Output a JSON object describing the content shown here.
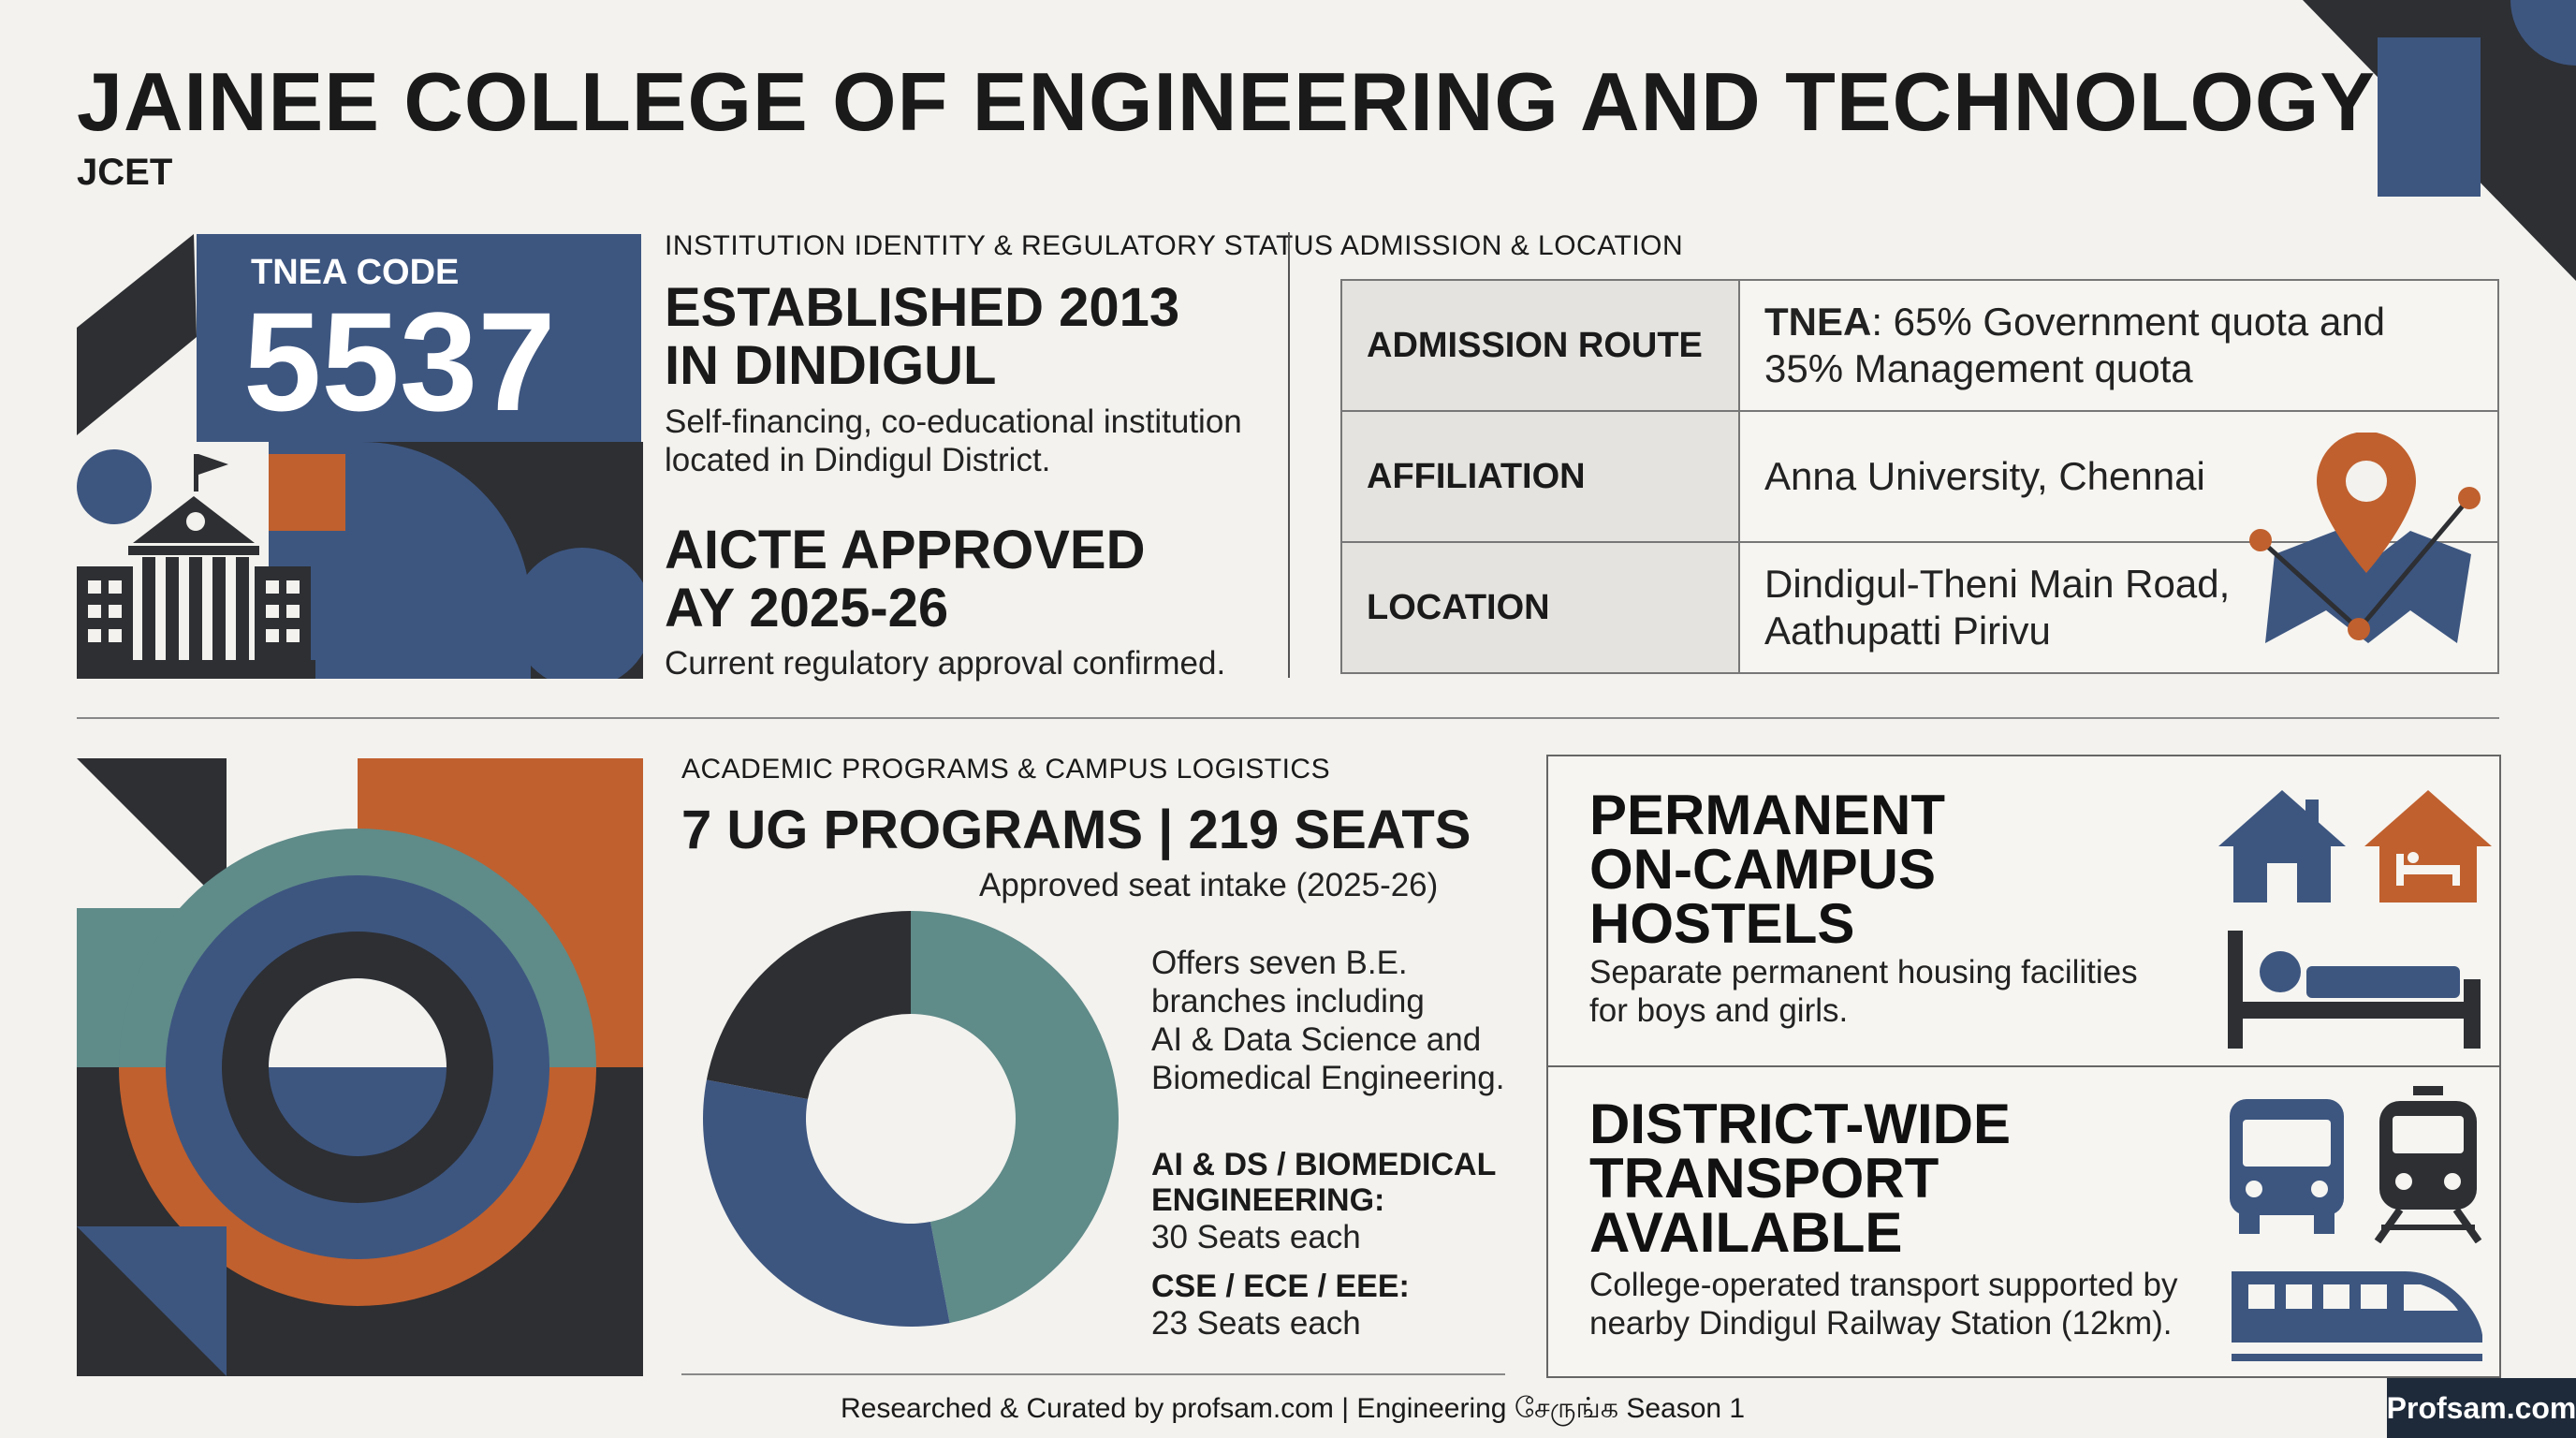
{
  "header": {
    "title": "JAINEE COLLEGE OF ENGINEERING AND TECHNOLOGY",
    "subtitle": "JCET"
  },
  "tnea": {
    "label": "TNEA CODE",
    "code": "5537"
  },
  "identity": {
    "section_label": "INSTITUTION IDENTITY & REGULATORY STATUS",
    "established_line1": "ESTABLISHED 2013",
    "established_line2": "IN DINDIGUL",
    "established_desc_line1": "Self-financing, co-educational institution",
    "established_desc_line2": "located in Dindigul District.",
    "aicte_line1": "AICTE APPROVED",
    "aicte_line2": "AY 2025-26",
    "aicte_desc": "Current regulatory approval confirmed."
  },
  "admission": {
    "section_label": "ADMISSION & LOCATION",
    "rows": [
      {
        "key": "ADMISSION ROUTE",
        "value_bold": "TNEA",
        "value_line1": ": 65% Government quota and",
        "value_line2": "35% Management quota"
      },
      {
        "key": "AFFILIATION",
        "value_line1": "Anna University, Chennai"
      },
      {
        "key": "LOCATION",
        "value_line1": "Dindigul-Theni Main Road,",
        "value_line2": "Aathupatti Pirivu"
      }
    ]
  },
  "academics": {
    "section_label": "ACADEMIC PROGRAMS & CAMPUS LOGISTICS",
    "headline": "7 UG PROGRAMS | 219 SEATS",
    "subheadline": "Approved seat intake (2025-26)",
    "desc_line1": "Offers seven B.E.",
    "desc_line2": "branches including",
    "desc_line3": "AI & Data Science and",
    "desc_line4": "Biomedical Engineering.",
    "group1_line1": "AI & DS / BIOMEDICAL",
    "group1_line2": "ENGINEERING:",
    "group1_seats": "30 Seats each",
    "group2_title": "CSE / ECE / EEE:",
    "group2_seats": "23 Seats each"
  },
  "chart_data": {
    "type": "pie",
    "values": [
      {
        "value": 47,
        "color": "#5f8b89"
      },
      {
        "value": 31,
        "color": "#3d5680"
      },
      {
        "value": 22,
        "color": "#2d2f33"
      }
    ]
  },
  "hostels": {
    "title_line1": "PERMANENT",
    "title_line2": "ON-CAMPUS",
    "title_line3": "HOSTELS",
    "desc_line1": "Separate permanent housing facilities",
    "desc_line2": "for boys and girls."
  },
  "transport": {
    "title_line1": "DISTRICT-WIDE",
    "title_line2": "TRANSPORT",
    "title_line3": "AVAILABLE",
    "desc_line1": "College-operated transport supported by",
    "desc_line2": "nearby Dindigul Railway Station (12km)."
  },
  "footer": {
    "credit": "Researched & Curated by profsam.com | Engineering சேருங்க Season 1",
    "brand": "Profsam.com"
  },
  "colors": {
    "navy": "#3d5680",
    "orange": "#c0602e",
    "teal": "#5f8b89",
    "charcoal": "#2d2f33"
  }
}
